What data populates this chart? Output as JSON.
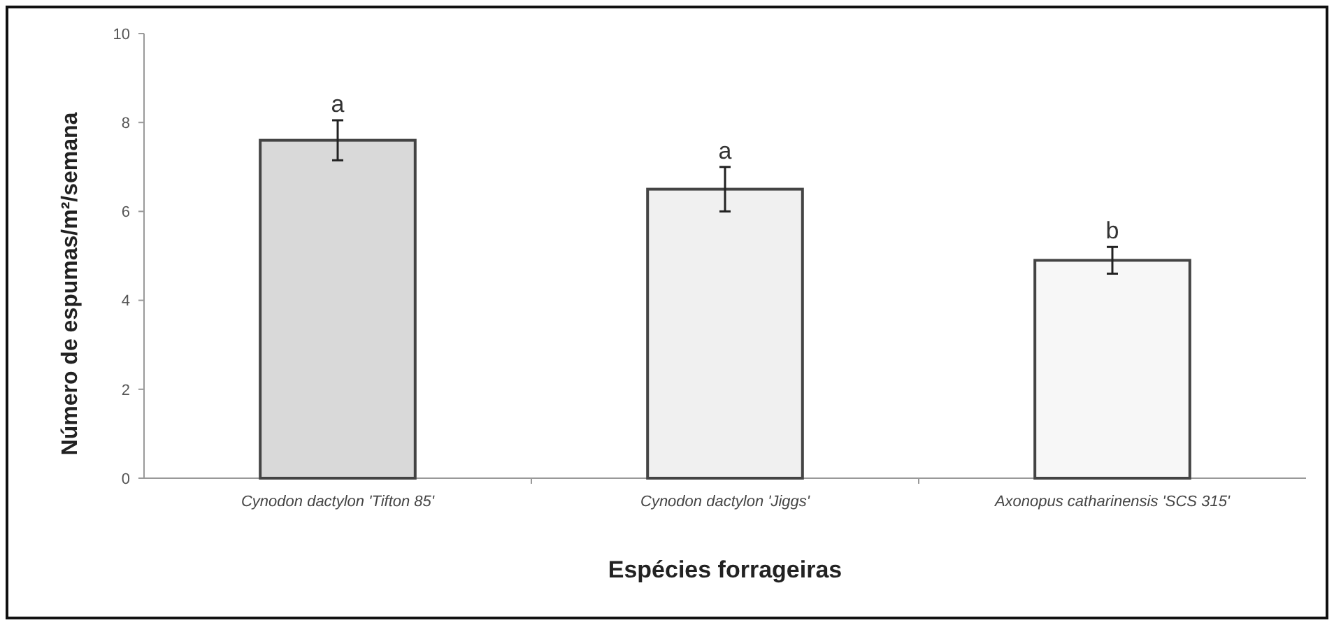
{
  "chart_data": {
    "type": "bar",
    "xlabel": "Espécies forrageiras",
    "ylabel": "Número de espumas/m²/semana",
    "categories": [
      "Cynodon dactylon 'Tifton 85'",
      "Cynodon dactylon 'Jiggs'",
      "Axonopus catharinensis 'SCS 315'"
    ],
    "values": [
      7.6,
      6.5,
      4.9
    ],
    "colors": [
      "#d9d9d9",
      "#f0f0f0",
      "#f7f7f7"
    ],
    "errors": [
      0.45,
      0.5,
      0.3
    ],
    "ylim": [
      0,
      10
    ],
    "yticks": [
      0,
      2,
      4,
      6,
      8,
      10
    ],
    "annotations": [
      {
        "text": "a",
        "x": "Cynodon dactylon 'Tifton 85'",
        "y": 8.05
      },
      {
        "text": "a",
        "x": "Cynodon dactylon 'Jiggs'",
        "y": 7.0
      },
      {
        "text": "b",
        "x": "Axonopus catharinensis 'SCS 315'",
        "y": 5.2
      }
    ]
  }
}
